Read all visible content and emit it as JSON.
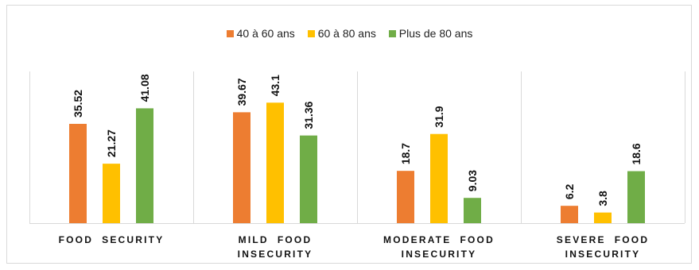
{
  "chart_data": {
    "type": "bar",
    "categories": [
      [
        "FOOD  SECURITY"
      ],
      [
        "MILD  FOOD",
        "INSECURITY"
      ],
      [
        "MODERATE  FOOD",
        "INSECURITY"
      ],
      [
        "SEVERE  FOOD",
        "INSECURITY"
      ]
    ],
    "series": [
      {
        "name": "40 à 60 ans",
        "color": "#ED7D31",
        "values": [
          35.52,
          39.67,
          18.7,
          6.2
        ]
      },
      {
        "name": "60 à 80 ans",
        "color": "#FFC000",
        "values": [
          21.27,
          43.1,
          31.9,
          3.8
        ]
      },
      {
        "name": "Plus de 80 ans",
        "color": "#70AD47",
        "values": [
          41.08,
          31.36,
          9.03,
          18.6
        ]
      }
    ],
    "value_labels": [
      [
        "35.52",
        "39.67",
        "18.7",
        "6.2"
      ],
      [
        "21.27",
        "43.1",
        "31.9",
        "3.8"
      ],
      [
        "41.08",
        "31.36",
        "9.03",
        "18.6"
      ]
    ],
    "ylim": [
      0,
      50
    ],
    "grid": false,
    "legend_position": "top-center"
  }
}
